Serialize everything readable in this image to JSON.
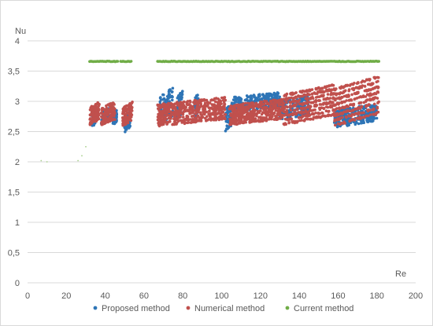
{
  "chart_data": {
    "type": "scatter",
    "xlabel": "Re",
    "ylabel": "Nu",
    "xlim": [
      0,
      200
    ],
    "ylim": [
      0,
      4
    ],
    "x_ticks": [
      0,
      20,
      40,
      60,
      80,
      100,
      120,
      140,
      160,
      180,
      200
    ],
    "x_tick_labels": [
      "0",
      "20",
      "40",
      "60",
      "80",
      "100",
      "120",
      "140",
      "160",
      "180",
      "200"
    ],
    "y_ticks": [
      0,
      0.5,
      1,
      1.5,
      2,
      2.5,
      3,
      3.5,
      4
    ],
    "y_tick_labels": [
      "0",
      "0,5",
      "1",
      "1,5",
      "2",
      "2,5",
      "3",
      "3,5",
      "4"
    ],
    "grid": true,
    "legend_position": "bottom",
    "series": [
      {
        "name": "Proposed method",
        "color": "#2e75b6",
        "clusters": [
          {
            "x_range": [
              33,
              36
            ],
            "y_range": [
              2.58,
              2.95
            ]
          },
          {
            "x_range": [
              38,
              42
            ],
            "y_range": [
              2.62,
              2.92
            ]
          },
          {
            "x_range": [
              44,
              46
            ],
            "y_range": [
              2.62,
              2.85
            ]
          },
          {
            "x_range": [
              50,
              53
            ],
            "y_range": [
              2.5,
              2.85
            ]
          },
          {
            "x_range": [
              68,
              75
            ],
            "y_range": [
              2.62,
              3.25
            ]
          },
          {
            "x_range": [
              77,
              80
            ],
            "y_range": [
              2.7,
              3.2
            ]
          },
          {
            "x_range": [
              86,
              88
            ],
            "y_range": [
              2.75,
              3.15
            ]
          },
          {
            "x_range": [
              102,
              106
            ],
            "y_range": [
              2.52,
              3.0
            ]
          },
          {
            "x_range": [
              106,
              130
            ],
            "y_range": [
              2.85,
              3.15
            ]
          },
          {
            "x_range": [
              130,
              145
            ],
            "y_range": [
              2.7,
              3.1
            ]
          },
          {
            "x_range": [
              158,
              163
            ],
            "y_range": [
              2.55,
              2.9
            ]
          },
          {
            "x_range": [
              163,
              180
            ],
            "y_range": [
              2.6,
              2.97
            ]
          }
        ]
      },
      {
        "name": "Numerical method",
        "color": "#c0504d",
        "clusters": [
          {
            "x_range": [
              32,
              37
            ],
            "y_range": [
              2.62,
              3.0
            ]
          },
          {
            "x_range": [
              38,
              45
            ],
            "y_range": [
              2.62,
              3.0
            ]
          },
          {
            "x_range": [
              49,
              54
            ],
            "y_range": [
              2.6,
              3.0
            ]
          },
          {
            "x_range": [
              67,
              102
            ],
            "y_range": [
              2.6,
              3.08
            ]
          },
          {
            "x_range": [
              104,
              132
            ],
            "y_range": [
              2.62,
              3.05
            ]
          },
          {
            "x_range": [
              132,
              158
            ],
            "y_range": [
              2.62,
              3.3
            ]
          },
          {
            "x_range": [
              158,
              181
            ],
            "y_range": [
              2.6,
              3.45
            ]
          }
        ]
      },
      {
        "name": "Current method",
        "color": "#70ad47",
        "segments": [
          {
            "x_range": [
              32,
              47
            ],
            "y": 3.66
          },
          {
            "x_range": [
              48,
              54
            ],
            "y": 3.66
          },
          {
            "x_range": [
              67,
              181
            ],
            "y": 3.66
          }
        ],
        "small_points": [
          {
            "x": 7,
            "y": 2.02
          },
          {
            "x": 10,
            "y": 2.0
          },
          {
            "x": 26,
            "y": 2.02
          },
          {
            "x": 28,
            "y": 2.1
          },
          {
            "x": 30,
            "y": 2.25
          }
        ]
      }
    ]
  }
}
